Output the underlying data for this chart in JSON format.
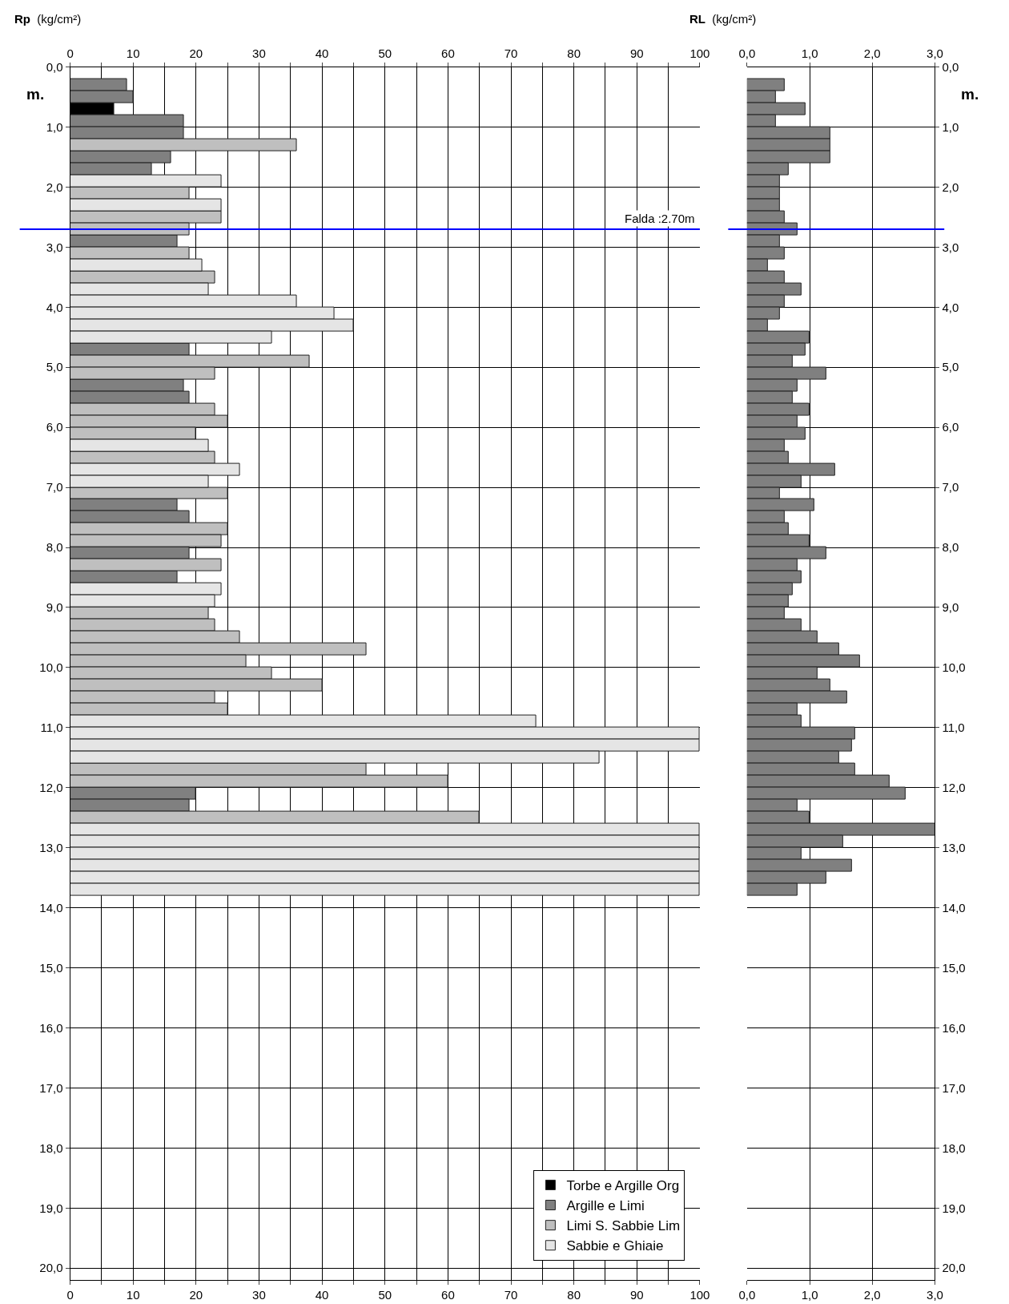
{
  "chart_data": [
    {
      "type": "bar",
      "orientation": "horizontal",
      "xlabel": "Rp (kg/cm²)",
      "ylabel": "m.",
      "xlim": [
        0,
        100
      ],
      "xticks": [
        0,
        {
          "value": 5,
          "label": null
        },
        10,
        {
          "value": 15,
          "label": null
        },
        20,
        {
          "value": 25,
          "label": null
        },
        30,
        {
          "value": 35,
          "label": null
        },
        40,
        {
          "value": 45,
          "label": null
        },
        50,
        {
          "value": 55,
          "label": null
        },
        60,
        {
          "value": 65,
          "label": null
        },
        70,
        {
          "value": 75,
          "label": null
        },
        80,
        {
          "value": 85,
          "label": null
        },
        90,
        {
          "value": 95,
          "label": null
        },
        100
      ],
      "x2lim": [
        0,
        100
      ],
      "x2ticks": [
        0,
        {
          "value": 5,
          "label": null
        },
        10,
        {
          "value": 15,
          "label": null
        },
        20,
        {
          "value": 25,
          "label": null
        },
        30,
        {
          "value": 35,
          "label": null
        },
        40,
        {
          "value": 45,
          "label": null
        },
        50,
        {
          "value": 55,
          "label": null
        },
        60,
        {
          "value": 65,
          "label": null
        },
        70,
        {
          "value": 75,
          "label": null
        },
        80,
        {
          "value": 85,
          "label": null
        },
        90,
        {
          "value": 95,
          "label": null
        },
        100
      ],
      "ylim": [
        20.2,
        0
      ],
      "yticks": [
        {
          "value": 0,
          "label": "0,0"
        },
        {
          "value": 1,
          "label": "1,0"
        },
        {
          "value": 2,
          "label": "2,0"
        },
        {
          "value": 3,
          "label": "3,0"
        },
        {
          "value": 4,
          "label": "4,0"
        },
        {
          "value": 5,
          "label": "5,0"
        },
        {
          "value": 6,
          "label": "6,0"
        },
        {
          "value": 7,
          "label": "7,0"
        },
        {
          "value": 8,
          "label": "8,0"
        },
        {
          "value": 9,
          "label": "9,0"
        },
        {
          "value": 10,
          "label": "10,0"
        },
        {
          "value": 11,
          "label": "11,0"
        },
        {
          "value": 12,
          "label": "12,0"
        },
        {
          "value": 13,
          "label": "13,0"
        },
        {
          "value": 14,
          "label": "14,0"
        },
        {
          "value": 15,
          "label": "15,0"
        },
        {
          "value": 16,
          "label": "16,0"
        },
        {
          "value": 17,
          "label": "17,0"
        },
        {
          "value": 18,
          "label": "18,0"
        },
        {
          "value": 19,
          "label": "19,0"
        },
        {
          "value": 20,
          "label": "20,0"
        }
      ],
      "grid": true,
      "legend": "bottom right",
      "ref_lines": [
        {
          "axis": "y",
          "value": 2.7,
          "label": "Falda :2.70m",
          "color": "#0000ff"
        }
      ],
      "series": [
        {
          "name": "Torbe e Argille Org",
          "color": "#000000",
          "x": [
            0.7
          ],
          "values": [
            7
          ]
        },
        {
          "name": "Argille e Limi",
          "color": "#808080",
          "x": [
            0.3,
            0.5,
            0.9,
            1.1,
            1.5,
            1.7,
            2.9,
            4.7,
            5.3,
            5.5,
            7.3,
            7.5,
            8.1,
            8.5,
            12.1,
            12.3
          ],
          "values": [
            9,
            10,
            18,
            18,
            16,
            13,
            17,
            19,
            18,
            19,
            17,
            19,
            19,
            17,
            20,
            19
          ]
        },
        {
          "name": "Limi S. Sabbie Lim",
          "color": "#bfbfbf",
          "x": [
            1.3,
            2.1,
            2.5,
            2.7,
            3.1,
            3.5,
            4.9,
            5.1,
            5.7,
            5.9,
            6.1,
            6.5,
            7.1,
            7.7,
            7.9,
            8.3,
            9.1,
            9.3,
            9.5,
            9.7,
            9.9,
            10.1,
            10.3,
            10.5,
            10.7,
            11.7,
            11.9,
            12.5
          ],
          "values": [
            36,
            19,
            24,
            19,
            19,
            23,
            38,
            23,
            23,
            25,
            20,
            23,
            25,
            25,
            24,
            24,
            22,
            23,
            27,
            47,
            28,
            32,
            40,
            23,
            25,
            47,
            60,
            65
          ]
        },
        {
          "name": "Sabbie e Ghiaie",
          "color": "#e5e5e5",
          "x": [
            1.9,
            2.3,
            3.3,
            3.7,
            3.9,
            4.1,
            4.3,
            4.5,
            6.3,
            6.7,
            6.9,
            8.7,
            8.9,
            10.9,
            11.1,
            11.3,
            11.5,
            12.7,
            12.9,
            13.1,
            13.3,
            13.5,
            13.7
          ],
          "values": [
            24,
            24,
            21,
            22,
            36,
            42,
            45,
            32,
            22,
            27,
            22,
            24,
            23,
            74,
            100,
            100,
            84,
            100,
            100,
            100,
            100,
            100,
            100
          ]
        }
      ]
    },
    {
      "type": "bar",
      "orientation": "horizontal",
      "xlabel": "RL (kg/cm²)",
      "ylabel": "m.",
      "xlim": [
        0,
        3.0
      ],
      "xticks": [
        {
          "value": 0,
          "label": "0,0"
        },
        {
          "value": 1,
          "label": "1,0"
        },
        {
          "value": 2,
          "label": "2,0"
        },
        {
          "value": 3,
          "label": "3,0"
        }
      ],
      "x2lim": [
        0,
        3.0
      ],
      "x2ticks": [
        {
          "value": 0,
          "label": "0,0"
        },
        {
          "value": 1,
          "label": "1,0"
        },
        {
          "value": 2,
          "label": "2,0"
        },
        {
          "value": 3,
          "label": "3,0"
        }
      ],
      "ylim": [
        20.2,
        0
      ],
      "yticks": [
        {
          "value": 0,
          "label": "0,0"
        },
        {
          "value": 1,
          "label": "1,0"
        },
        {
          "value": 2,
          "label": "2,0"
        },
        {
          "value": 3,
          "label": "3,0"
        },
        {
          "value": 4,
          "label": "4,0"
        },
        {
          "value": 5,
          "label": "5,0"
        },
        {
          "value": 6,
          "label": "6,0"
        },
        {
          "value": 7,
          "label": "7,0"
        },
        {
          "value": 8,
          "label": "8,0"
        },
        {
          "value": 9,
          "label": "9,0"
        },
        {
          "value": 10,
          "label": "10,0"
        },
        {
          "value": 11,
          "label": "11,0"
        },
        {
          "value": 12,
          "label": "12,0"
        },
        {
          "value": 13,
          "label": "13,0"
        },
        {
          "value": 14,
          "label": "14,0"
        },
        {
          "value": 15,
          "label": "15,0"
        },
        {
          "value": 16,
          "label": "16,0"
        },
        {
          "value": 17,
          "label": "17,0"
        },
        {
          "value": 18,
          "label": "18,0"
        },
        {
          "value": 19,
          "label": "19,0"
        },
        {
          "value": 20,
          "label": "20,0"
        }
      ],
      "grid": true,
      "ref_lines": [
        {
          "axis": "y",
          "value": 2.7,
          "color": "#0000ff"
        }
      ],
      "series": [
        {
          "color": "#808080",
          "x": [
            0.3,
            0.5,
            0.7,
            0.9,
            1.1,
            1.3,
            1.5,
            1.7,
            1.9,
            2.1,
            2.3,
            2.5,
            2.7,
            2.9,
            3.1,
            3.3,
            3.5,
            3.7,
            3.9,
            4.1,
            4.3,
            4.5,
            4.7,
            4.9,
            5.1,
            5.3,
            5.5,
            5.7,
            5.9,
            6.1,
            6.3,
            6.5,
            6.7,
            6.9,
            7.1,
            7.3,
            7.5,
            7.7,
            7.9,
            8.1,
            8.3,
            8.5,
            8.7,
            8.9,
            9.1,
            9.3,
            9.5,
            9.7,
            9.9,
            10.1,
            10.3,
            10.5,
            10.7,
            10.9,
            11.1,
            11.3,
            11.5,
            11.7,
            11.9,
            12.1,
            12.3,
            12.5,
            12.7,
            12.9,
            13.1,
            13.3,
            13.5,
            13.7
          ],
          "values": [
            0.6,
            0.46,
            0.93,
            0.46,
            1.33,
            1.33,
            1.33,
            0.67,
            0.53,
            0.53,
            0.53,
            0.6,
            0.8,
            0.53,
            0.6,
            0.33,
            0.6,
            0.87,
            0.6,
            0.53,
            0.33,
            1.0,
            0.93,
            0.73,
            1.27,
            0.8,
            0.73,
            1.0,
            0.8,
            0.93,
            0.6,
            0.67,
            1.4,
            0.87,
            0.53,
            1.07,
            0.6,
            0.67,
            1.0,
            1.27,
            0.8,
            0.87,
            0.73,
            0.67,
            0.6,
            0.87,
            1.13,
            1.47,
            1.8,
            1.13,
            1.33,
            1.6,
            0.8,
            0.87,
            1.73,
            1.67,
            1.47,
            1.73,
            2.27,
            2.53,
            0.8,
            1.0,
            3.0,
            1.53,
            0.87,
            1.67,
            1.27,
            0.8
          ]
        }
      ]
    }
  ]
}
